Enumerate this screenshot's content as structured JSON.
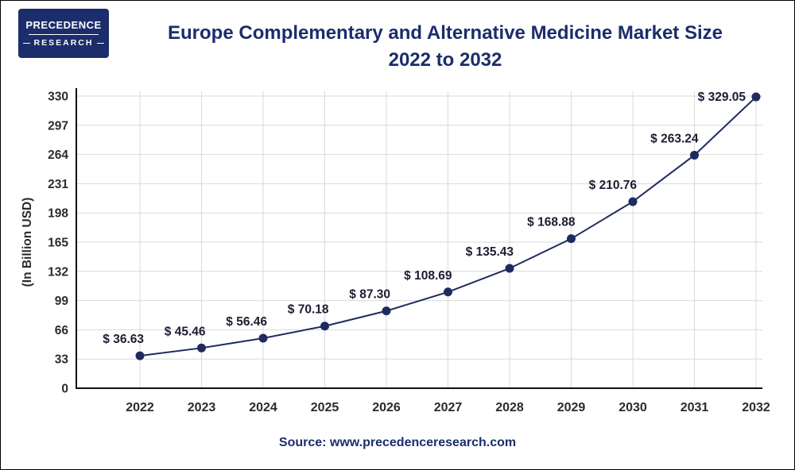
{
  "logo": {
    "line1": "PRECEDENCE",
    "line2": "RESEARCH"
  },
  "title": {
    "line1": "Europe Complementary and Alternative Medicine Market Size",
    "line2": "2022 to 2032"
  },
  "source": "Source: www.precedenceresearch.com",
  "chart_data": {
    "type": "line",
    "title": "Europe Complementary and Alternative Medicine Market Size 2022 to 2032",
    "categories": [
      "2022",
      "2023",
      "2024",
      "2025",
      "2026",
      "2027",
      "2028",
      "2029",
      "2030",
      "2031",
      "2032"
    ],
    "values": [
      36.63,
      45.46,
      56.46,
      70.18,
      87.3,
      108.69,
      135.43,
      168.88,
      210.76,
      263.24,
      329.05
    ],
    "value_labels": [
      "$ 36.63",
      "$ 45.46",
      "$ 56.46",
      "$ 70.18",
      "$ 87.30",
      "$ 108.69",
      "$ 135.43",
      "$ 168.88",
      "$ 210.76",
      "$ 263.24",
      "$ 329.05"
    ],
    "xlabel": "",
    "ylabel": "(In Billion USD)",
    "yticks": [
      0,
      33,
      66,
      99,
      132,
      165,
      198,
      231,
      264,
      297,
      330
    ],
    "ylim": [
      0,
      330
    ],
    "grid": true,
    "legend": false,
    "colors": {
      "line": "#1f2a5e",
      "marker": "#1f2a5e",
      "navy": "#1b2d6b",
      "grid": "#d9d9d9",
      "axis": "#111111",
      "tick_text": "#2b2b2b",
      "data_label": "#1c1c34"
    }
  }
}
